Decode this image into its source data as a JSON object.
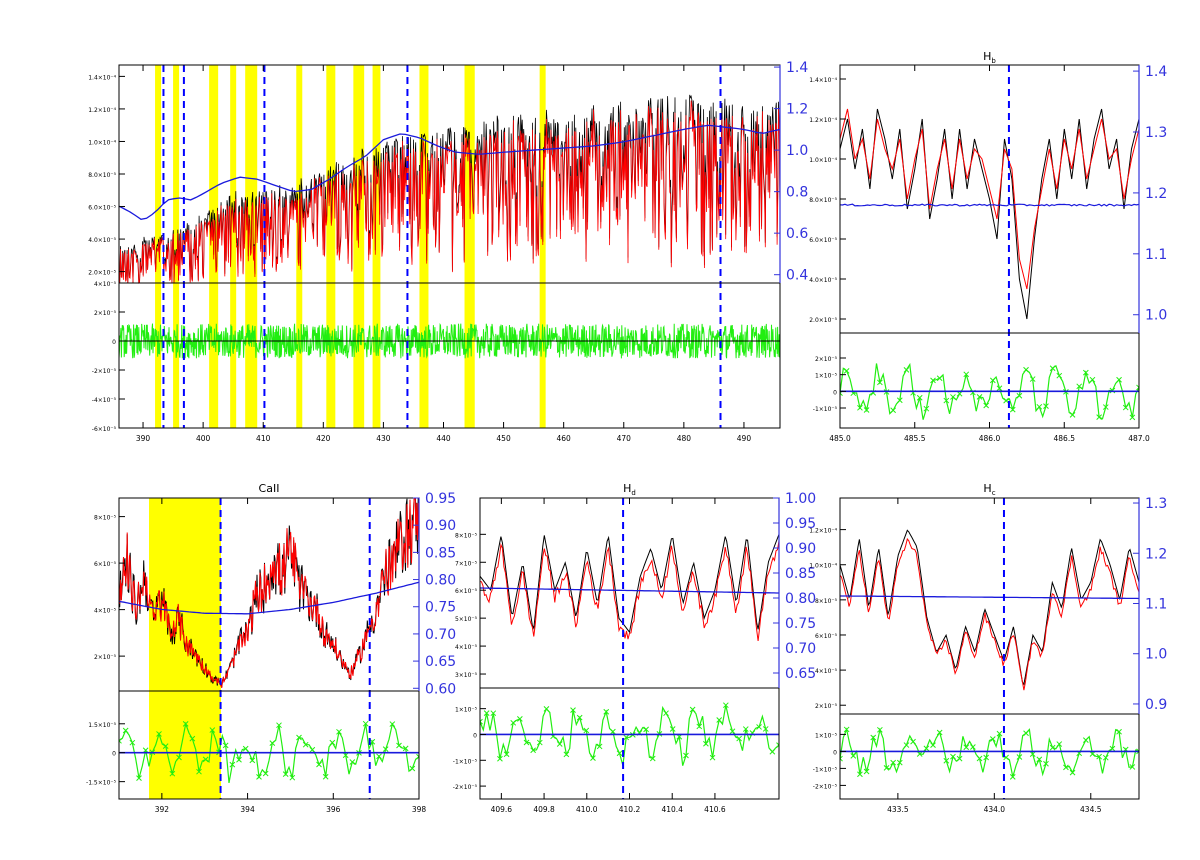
{
  "colors": {
    "observed": "#000000",
    "model": "#ff0000",
    "continuum": "#1a1adc",
    "residual": "#22ee11",
    "mask": "#ffff00",
    "line_marker": "#0000ff",
    "right_axis": "#3333dd"
  },
  "chart_data": [
    {
      "id": "full",
      "type": "line",
      "title": "",
      "xlim": [
        386,
        496
      ],
      "x_ticks": [
        390,
        400,
        410,
        420,
        430,
        440,
        450,
        460,
        470,
        480,
        490
      ],
      "x_tick_labels": [
        "390",
        "400",
        "410",
        "420",
        "430",
        "440",
        "450",
        "460",
        "470",
        "480",
        "490"
      ],
      "top_ylim": [
        0.00013,
        0.00147
      ],
      "top_left_ticks": [
        0.0002,
        0.0004,
        0.0006,
        0.0008,
        0.001,
        0.0012,
        0.0014
      ],
      "top_left_tick_labels": [
        "2.0×10⁻⁵",
        "4.0×10⁻⁵",
        "6.0×10⁻⁵",
        "8.0×10⁻⁵",
        "1.0×10⁻⁴",
        "1.2×10⁻⁴",
        "1.4×10⁻⁴"
      ],
      "right_ylim": [
        0.36,
        1.41
      ],
      "right_ticks": [
        0.4,
        0.6,
        0.8,
        1.0,
        1.2,
        1.4
      ],
      "right_tick_labels": [
        "0.4",
        "0.6",
        "0.8",
        "1.0",
        "1.2",
        "1.4"
      ],
      "bottom_ylim": [
        -6e-05,
        4e-05
      ],
      "bottom_ticks": [
        -6e-05,
        -4e-05,
        -2e-05,
        0,
        2e-05,
        4e-05
      ],
      "bottom_tick_labels": [
        "-6×10⁻⁵",
        "-4×10⁻⁵",
        "-2×10⁻⁵",
        "0",
        "2×10⁻⁵",
        "4×10⁻⁵"
      ],
      "masked_regions": [
        [
          392,
          393
        ],
        [
          395,
          396
        ],
        [
          401,
          402.5
        ],
        [
          404.5,
          405.5
        ],
        [
          407,
          409
        ],
        [
          415.5,
          416.5
        ],
        [
          420.5,
          422
        ],
        [
          425,
          426.8
        ],
        [
          428.2,
          429.5
        ],
        [
          436,
          437.5
        ],
        [
          443.5,
          445.2
        ],
        [
          456,
          457
        ]
      ],
      "line_markers": [
        393.4,
        396.8,
        410.2,
        434.0,
        486.1
      ],
      "continuum": {
        "x": [
          386,
          388,
          390,
          392,
          394,
          396,
          398,
          400,
          403,
          406,
          409,
          412,
          415,
          418,
          421,
          424,
          427,
          430,
          433,
          436,
          439,
          442,
          446,
          450,
          455,
          460,
          465,
          470,
          475,
          480,
          484,
          487,
          490,
          493,
          496
        ],
        "y": [
          0.73,
          0.7,
          0.66,
          0.7,
          0.76,
          0.77,
          0.76,
          0.79,
          0.84,
          0.87,
          0.86,
          0.83,
          0.8,
          0.81,
          0.86,
          0.92,
          0.97,
          1.05,
          1.08,
          1.06,
          1.02,
          0.99,
          0.98,
          0.99,
          1.0,
          1.01,
          1.02,
          1.04,
          1.07,
          1.1,
          1.12,
          1.11,
          1.1,
          1.08,
          1.1
        ]
      },
      "observed_envelope": {
        "x": [
          386,
          390,
          394,
          398,
          402,
          406,
          410,
          414,
          418,
          422,
          426,
          430,
          434,
          438,
          442,
          446,
          450,
          455,
          460,
          465,
          470,
          475,
          480,
          485,
          490,
          496
        ],
        "y": [
          0.00035,
          0.0004,
          0.00045,
          0.0005,
          0.00062,
          0.00068,
          0.0007,
          0.00072,
          0.00078,
          0.00085,
          0.00092,
          0.001,
          0.00105,
          0.00102,
          0.00108,
          0.0011,
          0.00115,
          0.00113,
          0.00118,
          0.0012,
          0.0012,
          0.00125,
          0.00124,
          0.00126,
          0.0012,
          0.00122
        ]
      }
    },
    {
      "id": "hb",
      "type": "line",
      "title": "H",
      "title_subscript": "b",
      "xlim": [
        485.0,
        487.0
      ],
      "x_ticks": [
        485.0,
        485.5,
        486.0,
        486.5,
        487.0
      ],
      "x_tick_labels": [
        "485.0",
        "485.5",
        "486.0",
        "486.5",
        "487.0"
      ],
      "top_ylim": [
        0.00013,
        0.00147
      ],
      "top_left_ticks": [
        0.0002,
        0.0004,
        0.0006,
        0.0008,
        0.001,
        0.0012,
        0.0014
      ],
      "top_left_tick_labels": [
        "2.0×10⁻⁵",
        "4.0×10⁻⁵",
        "6.0×10⁻⁵",
        "8.0×10⁻⁵",
        "1.0×10⁻⁴",
        "1.2×10⁻⁴",
        "1.4×10⁻⁴"
      ],
      "right_ylim": [
        0.97,
        1.41
      ],
      "right_ticks": [
        1.0,
        1.1,
        1.2,
        1.3,
        1.4
      ],
      "right_tick_labels": [
        "1.0",
        "1.1",
        "1.2",
        "1.3",
        "1.4"
      ],
      "bottom_ylim": [
        -2.2e-05,
        3.5e-05
      ],
      "bottom_ticks": [
        -1e-05,
        0,
        1e-05,
        2e-05
      ],
      "bottom_tick_labels": [
        "-1×10⁻⁵",
        "0",
        "1×10⁻⁵",
        "2×10⁻⁵"
      ],
      "masked_regions": [],
      "line_markers": [
        486.13
      ],
      "continuum_level": 1.18,
      "observed": {
        "x": [
          485.0,
          485.05,
          485.1,
          485.15,
          485.2,
          485.25,
          485.3,
          485.35,
          485.4,
          485.45,
          485.5,
          485.55,
          485.6,
          485.65,
          485.7,
          485.75,
          485.8,
          485.85,
          485.9,
          485.95,
          486.0,
          486.05,
          486.1,
          486.15,
          486.2,
          486.25,
          486.3,
          486.35,
          486.4,
          486.45,
          486.5,
          486.55,
          486.6,
          486.65,
          486.7,
          486.75,
          486.8,
          486.85,
          486.9,
          486.95,
          487.0
        ],
        "y": [
          0.00105,
          0.0012,
          0.00095,
          0.00115,
          0.00085,
          0.00125,
          0.0011,
          0.0009,
          0.00115,
          0.00075,
          0.00095,
          0.0012,
          0.0007,
          0.0009,
          0.00115,
          0.0008,
          0.00115,
          0.00085,
          0.0011,
          0.00095,
          0.0008,
          0.0006,
          0.0011,
          0.0009,
          0.0004,
          0.0002,
          0.0006,
          0.0009,
          0.0011,
          0.0008,
          0.00115,
          0.0009,
          0.0012,
          0.00085,
          0.0011,
          0.00125,
          0.00095,
          0.0011,
          0.00075,
          0.00105,
          0.0012
        ]
      },
      "model": {
        "x": [
          485.0,
          485.05,
          485.1,
          485.15,
          485.2,
          485.25,
          485.3,
          485.35,
          485.4,
          485.45,
          485.5,
          485.55,
          485.6,
          485.65,
          485.7,
          485.75,
          485.8,
          485.85,
          485.9,
          485.95,
          486.0,
          486.05,
          486.1,
          486.15,
          486.2,
          486.25,
          486.3,
          486.35,
          486.4,
          486.45,
          486.5,
          486.55,
          486.6,
          486.65,
          486.7,
          486.75,
          486.8,
          486.85,
          486.9,
          486.95,
          487.0
        ],
        "y": [
          0.0011,
          0.00125,
          0.001,
          0.0011,
          0.0009,
          0.0012,
          0.00105,
          0.00095,
          0.0011,
          0.0008,
          0.001,
          0.00115,
          0.00075,
          0.00095,
          0.0011,
          0.00085,
          0.0011,
          0.0009,
          0.00105,
          0.001,
          0.00085,
          0.0007,
          0.00105,
          0.00095,
          0.0005,
          0.00035,
          0.00065,
          0.00085,
          0.00105,
          0.00085,
          0.0011,
          0.00095,
          0.00115,
          0.0009,
          0.00105,
          0.0012,
          0.001,
          0.00105,
          0.0008,
          0.001,
          0.00115
        ]
      }
    },
    {
      "id": "caii",
      "type": "line",
      "title": "CaII",
      "xlim": [
        391.0,
        398.0
      ],
      "x_ticks": [
        392,
        394,
        396,
        398
      ],
      "x_tick_labels": [
        "392",
        "394",
        "396",
        "398"
      ],
      "top_ylim": [
        5e-05,
        0.00088
      ],
      "top_left_ticks": [
        0.0002,
        0.0004,
        0.0006,
        0.0008
      ],
      "top_left_tick_labels": [
        "2×10⁻⁵",
        "4×10⁻⁵",
        "6×10⁻⁵",
        "8×10⁻⁵"
      ],
      "right_ylim": [
        0.595,
        0.95
      ],
      "right_ticks": [
        0.6,
        0.65,
        0.7,
        0.75,
        0.8,
        0.85,
        0.9,
        0.95
      ],
      "right_tick_labels": [
        "0.60",
        "0.65",
        "0.70",
        "0.75",
        "0.80",
        "0.85",
        "0.90",
        "0.95"
      ],
      "bottom_ylim": [
        -2.4e-05,
        3.2e-05
      ],
      "bottom_ticks": [
        -1.5e-05,
        0,
        1.5e-05
      ],
      "bottom_tick_labels": [
        "-1.5×10⁻⁵",
        "0",
        "1.5×10⁻⁵"
      ],
      "masked_regions": [
        [
          391.7,
          393.38
        ]
      ],
      "line_markers": [
        393.37,
        396.85
      ],
      "continuum": {
        "x": [
          391.0,
          392.0,
          393.0,
          394.0,
          395.0,
          396.0,
          397.0,
          398.0
        ],
        "y": [
          0.76,
          0.745,
          0.738,
          0.737,
          0.745,
          0.758,
          0.775,
          0.795
        ]
      },
      "observed": {
        "x": [
          391.0,
          391.2,
          391.4,
          391.6,
          391.8,
          392.0,
          392.2,
          392.4,
          392.6,
          392.8,
          393.0,
          393.2,
          393.4,
          393.6,
          393.8,
          394.0,
          394.2,
          394.4,
          394.6,
          394.8,
          395.0,
          395.2,
          395.4,
          395.6,
          395.8,
          396.0,
          396.2,
          396.4,
          396.6,
          396.8,
          397.0,
          397.2,
          397.4,
          397.6,
          397.8,
          398.0
        ],
        "y": [
          0.00045,
          0.0006,
          0.0004,
          0.00055,
          0.00035,
          0.00045,
          0.0003,
          0.00035,
          0.00025,
          0.0002,
          0.00015,
          0.0001,
          8e-05,
          0.00015,
          0.00025,
          0.0003,
          0.00045,
          0.0005,
          0.0006,
          0.00055,
          0.00065,
          0.0005,
          0.00045,
          0.0004,
          0.0003,
          0.00025,
          0.00018,
          0.00012,
          0.0002,
          0.0003,
          0.0004,
          0.00055,
          0.0006,
          0.0007,
          0.00075,
          0.0008
        ]
      }
    },
    {
      "id": "hd",
      "type": "line",
      "title": "H",
      "title_subscript": "d",
      "xlim": [
        409.5,
        410.9
      ],
      "x_ticks": [
        409.6,
        409.8,
        410.0,
        410.2,
        410.4,
        410.6
      ],
      "x_tick_labels": [
        "409.6",
        "409.8",
        "410.0",
        "410.2",
        "410.4",
        "410.6"
      ],
      "top_ylim": [
        0.00025,
        0.00093
      ],
      "top_left_ticks": [
        0.0003,
        0.0004,
        0.0005,
        0.0006,
        0.0007,
        0.0008
      ],
      "top_left_tick_labels": [
        "3×10⁻⁵",
        "4×10⁻⁵",
        "5×10⁻⁵",
        "6×10⁻⁵",
        "7×10⁻⁵",
        "8×10⁻⁵"
      ],
      "right_ylim": [
        0.62,
        1.0
      ],
      "right_ticks": [
        0.65,
        0.7,
        0.75,
        0.8,
        0.85,
        0.9,
        0.95,
        1.0
      ],
      "right_tick_labels": [
        "0.65",
        "0.70",
        "0.75",
        "0.80",
        "0.85",
        "0.90",
        "0.95",
        "1.00"
      ],
      "bottom_ylim": [
        -2.5e-05,
        1.8e-05
      ],
      "bottom_ticks": [
        -2e-05,
        -1e-05,
        0,
        1e-05
      ],
      "bottom_tick_labels": [
        "-2×10⁻⁵",
        "-1×10⁻⁵",
        "0",
        "1×10⁻⁵"
      ],
      "masked_regions": [],
      "line_markers": [
        410.17
      ],
      "continuum": {
        "x": [
          409.5,
          410.9
        ],
        "y": [
          0.82,
          0.81
        ]
      },
      "observed": {
        "x": [
          409.5,
          409.55,
          409.6,
          409.65,
          409.7,
          409.75,
          409.8,
          409.85,
          409.9,
          409.95,
          410.0,
          410.05,
          410.1,
          410.15,
          410.2,
          410.25,
          410.3,
          410.35,
          410.4,
          410.45,
          410.5,
          410.55,
          410.6,
          410.65,
          410.7,
          410.75,
          410.8,
          410.85,
          410.9
        ],
        "y": [
          0.00065,
          0.0006,
          0.0008,
          0.0005,
          0.0007,
          0.00045,
          0.0008,
          0.0006,
          0.0007,
          0.0005,
          0.00075,
          0.00055,
          0.0008,
          0.0005,
          0.00045,
          0.00065,
          0.00075,
          0.0006,
          0.0008,
          0.00055,
          0.0007,
          0.0005,
          0.0006,
          0.0008,
          0.00055,
          0.0008,
          0.00045,
          0.0007,
          0.0008
        ]
      }
    },
    {
      "id": "hg",
      "type": "line",
      "title": "H",
      "title_subscript": "c",
      "xlim": [
        433.2,
        434.75
      ],
      "x_ticks": [
        433.5,
        434.0,
        434.5
      ],
      "x_tick_labels": [
        "433.5",
        "434.0",
        "434.5"
      ],
      "top_ylim": [
        0.00015,
        0.00138
      ],
      "top_left_ticks": [
        0.0002,
        0.0004,
        0.0006,
        0.0008,
        0.001,
        0.0012
      ],
      "top_left_tick_labels": [
        "2×10⁻⁵",
        "4×10⁻⁵",
        "6×10⁻⁵",
        "8×10⁻⁵",
        "1.0×10⁻⁴",
        "1.2×10⁻⁴"
      ],
      "right_ylim": [
        0.88,
        1.31
      ],
      "right_ticks": [
        0.9,
        1.0,
        1.1,
        1.2,
        1.3
      ],
      "right_tick_labels": [
        "0.9",
        "1.0",
        "1.1",
        "1.2",
        "1.3"
      ],
      "bottom_ylim": [
        -2.8e-05,
        2.2e-05
      ],
      "bottom_ticks": [
        -2e-05,
        -1e-05,
        0,
        1e-05
      ],
      "bottom_tick_labels": [
        "-2×10⁻⁵",
        "-1×10⁻⁵",
        "0",
        "1×10⁻⁵"
      ],
      "masked_regions": [],
      "line_markers": [
        434.05
      ],
      "continuum": {
        "x": [
          433.2,
          434.75
        ],
        "y": [
          1.115,
          1.11
        ]
      },
      "observed": {
        "x": [
          433.2,
          433.25,
          433.3,
          433.35,
          433.4,
          433.45,
          433.5,
          433.55,
          433.6,
          433.65,
          433.7,
          433.75,
          433.8,
          433.85,
          433.9,
          433.95,
          434.0,
          434.05,
          434.1,
          434.15,
          434.2,
          434.25,
          434.3,
          434.35,
          434.4,
          434.45,
          434.5,
          434.55,
          434.6,
          434.65,
          434.7,
          434.75
        ],
        "y": [
          0.001,
          0.0008,
          0.00115,
          0.00075,
          0.0011,
          0.0007,
          0.00105,
          0.0012,
          0.0011,
          0.0007,
          0.0005,
          0.0006,
          0.0004,
          0.00065,
          0.0005,
          0.00075,
          0.0006,
          0.00045,
          0.00065,
          0.0003,
          0.0006,
          0.0005,
          0.0009,
          0.00075,
          0.0011,
          0.0008,
          0.0009,
          0.00115,
          0.001,
          0.0008,
          0.0011,
          0.0009
        ]
      }
    }
  ]
}
